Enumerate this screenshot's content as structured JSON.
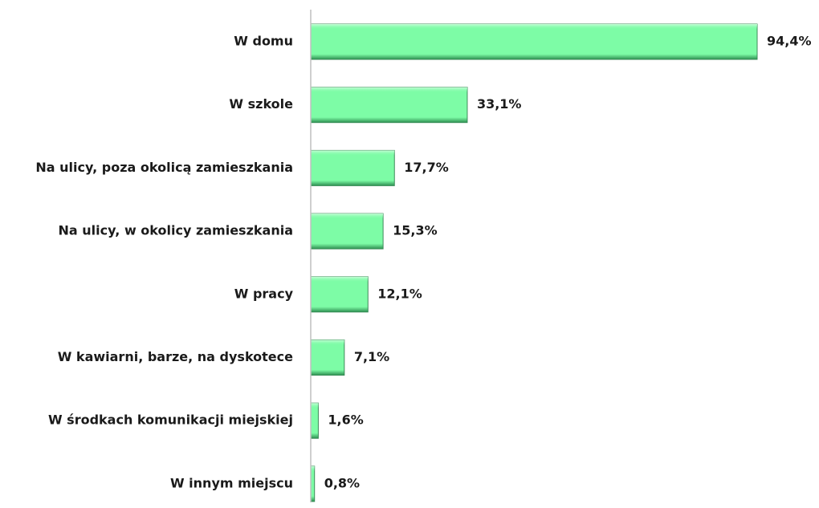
{
  "chart_data": {
    "type": "bar",
    "orientation": "horizontal",
    "categories": [
      "W domu",
      "W szkole",
      "Na ulicy, poza okolicą zamieszkania",
      "Na ulicy, w okolicy zamieszkania",
      "W pracy",
      "W kawiarni, barze, na dyskotece",
      "W środkach komunikacji miejskiej",
      "W innym miejscu"
    ],
    "values": [
      94.4,
      33.1,
      17.7,
      15.3,
      12.1,
      7.1,
      1.6,
      0.8
    ],
    "value_labels": [
      "94,4%",
      "33,1%",
      "17,7%",
      "15,3%",
      "12,1%",
      "7,1%",
      "1,6%",
      "0,8%"
    ],
    "color": "#7dfca6"
  }
}
